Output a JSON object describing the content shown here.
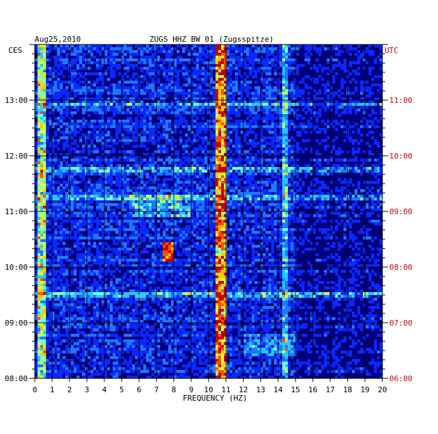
{
  "chart_data": {
    "type": "heatmap",
    "date": "Aug25,2010",
    "title": "ZUGS HHZ BW 01 (Zugsspitze)",
    "xlabel": "FREQUENCY (HZ)",
    "xlim": [
      0,
      20
    ],
    "x_ticks": [
      "0",
      "1",
      "2",
      "3",
      "4",
      "5",
      "6",
      "7",
      "8",
      "9",
      "10",
      "11",
      "12",
      "13",
      "14",
      "15",
      "16",
      "17",
      "18",
      "19",
      "20"
    ],
    "left_axis": {
      "label": "CES",
      "ticks": [
        "08:00",
        "09:00",
        "10:00",
        "11:00",
        "12:00",
        "13:00"
      ]
    },
    "right_axis": {
      "label": "UTC",
      "ticks": [
        "06:00",
        "07:00",
        "08:00",
        "09:00",
        "10:00",
        "11:00"
      ]
    },
    "colormap": [
      "#00007a",
      "#0000c8",
      "#0a28ff",
      "#1e78ff",
      "#28c8ff",
      "#78ffc8",
      "#dcff3c",
      "#ffc800",
      "#ff5000",
      "#c80000"
    ],
    "time_range_ces": [
      "08:00",
      "14:00"
    ],
    "features": {
      "dominant_band_hz": [
        10.4,
        11.0
      ],
      "secondary_band_hz": [
        14.2,
        14.6
      ],
      "low_freq_band_hz": [
        0.2,
        0.6
      ],
      "transient_near_10_15": {
        "freq_hz": [
          7.4,
          8.0
        ]
      },
      "broadband_stripes_ces": [
        "09:30",
        "11:15",
        "11:45",
        "12:55"
      ]
    },
    "grid": true
  }
}
